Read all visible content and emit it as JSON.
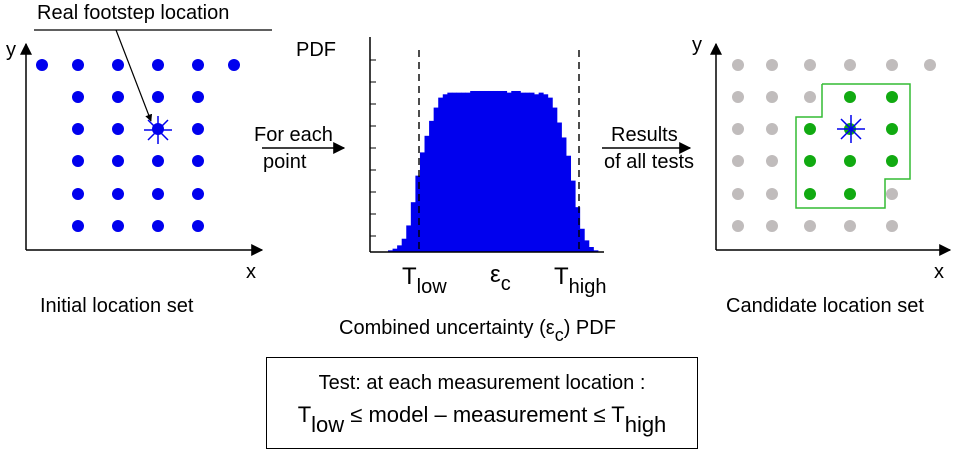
{
  "left_panel": {
    "axis_y": "y",
    "axis_x": "x",
    "annotation": "Real footstep location",
    "caption": "Initial location set",
    "point_color": "#0000ee"
  },
  "arrow1": {
    "line1": "For each",
    "line2": "point"
  },
  "middle_panel": {
    "ylabel": "PDF",
    "t_low_main": "T",
    "t_low_sub": "low",
    "eps_main": "ε",
    "eps_sub": "c",
    "t_high_main": "T",
    "t_high_sub": "high",
    "caption_pre": "Combined uncertainty (ε",
    "caption_sub": "c",
    "caption_post": ") PDF",
    "bar_color": "#0000ee"
  },
  "arrow2": {
    "line1": "Results",
    "line2": "of all tests"
  },
  "right_panel": {
    "axis_y": "y",
    "axis_x": "x",
    "caption": "Candidate location set",
    "candidate_color": "#11aa11",
    "rejected_color": "#c0bcbc",
    "region_color": "#33bb33"
  },
  "test_box": {
    "line1": "Test: at each measurement location :",
    "t_low_main": "T",
    "t_low_sub": "low",
    "middle": " ≤ model – measurement ≤ ",
    "t_high_main": "T",
    "t_high_sub": "high"
  },
  "chart_data": {
    "type": "bar",
    "title": "",
    "xlabel": "Combined uncertainty (εc) PDF",
    "ylabel": "PDF",
    "values": [
      0.01,
      0.02,
      0.04,
      0.08,
      0.16,
      0.3,
      0.46,
      0.6,
      0.7,
      0.79,
      0.87,
      0.93,
      0.95,
      0.96,
      0.96,
      0.96,
      0.96,
      0.96,
      0.97,
      0.97,
      0.97,
      0.97,
      0.97,
      0.97,
      0.97,
      0.97,
      0.96,
      0.97,
      0.97,
      0.96,
      0.96,
      0.96,
      0.95,
      0.96,
      0.95,
      0.93,
      0.87,
      0.78,
      0.69,
      0.58,
      0.43,
      0.27,
      0.14,
      0.07,
      0.03,
      0.01
    ]
  }
}
